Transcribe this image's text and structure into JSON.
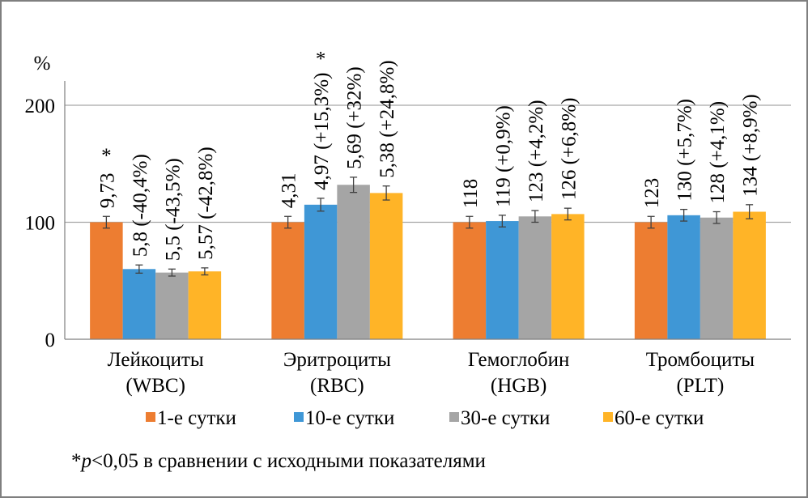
{
  "chart_data": {
    "type": "bar",
    "ylabel": "%",
    "ylim": [
      0,
      200
    ],
    "yticks": [
      0,
      100,
      200
    ],
    "grid": true,
    "legend_position": "bottom",
    "categories": [
      {
        "line1": "Лейкоциты",
        "line2": "(WBC)"
      },
      {
        "line1": "Эритроциты",
        "line2": "(RBC)"
      },
      {
        "line1": "Гемоглобин",
        "line2": "(HGB)"
      },
      {
        "line1": "Тромбоциты",
        "line2": "(PLT)"
      }
    ],
    "series": [
      {
        "name": "1-е сутки",
        "color": "#ED7D31",
        "values": [
          100,
          100,
          100,
          100
        ],
        "errors": [
          5,
          5,
          5,
          5
        ],
        "labels": [
          "9,73",
          "4,31",
          "118",
          "123"
        ],
        "stars": [
          true,
          false,
          false,
          false
        ]
      },
      {
        "name": "10-е сутки",
        "color": "#3F97D6",
        "values": [
          60,
          115,
          101,
          106
        ],
        "errors": [
          3.5,
          5.5,
          5,
          5
        ],
        "labels": [
          "5,8 (-40,4%)",
          "4,97 (+15,3%)",
          "119 (+0,9%)",
          "130 (+5,7%)"
        ],
        "stars": [
          false,
          true,
          false,
          false
        ]
      },
      {
        "name": "30-е сутки",
        "color": "#A5A5A5",
        "values": [
          57,
          132,
          105,
          104
        ],
        "errors": [
          3,
          6.5,
          5,
          5
        ],
        "labels": [
          "5,5 (-43,5%)",
          "5,69 (+32%)",
          "123 (+4,2%)",
          "128 (+4,1%)"
        ],
        "stars": [
          false,
          false,
          false,
          false
        ]
      },
      {
        "name": "60-е сутки",
        "color": "#FFB427",
        "values": [
          58,
          125,
          107,
          109
        ],
        "errors": [
          3,
          6,
          5,
          6
        ],
        "labels": [
          "5,57 (-42,8%)",
          "5,38 (+24,8%)",
          "126 (+6,8%)",
          "134 (+8,9%)"
        ],
        "stars": [
          false,
          false,
          false,
          false
        ]
      }
    ],
    "star_symbol": "*"
  },
  "footnote": {
    "star": "*",
    "p": "p",
    "rest": "<0,05 в сравнении с исходными показателями"
  },
  "colors": {
    "frame": "#7F7F7F",
    "axis": "#7F7F7F",
    "grid": "#A6A6A6",
    "error": "#404040"
  }
}
